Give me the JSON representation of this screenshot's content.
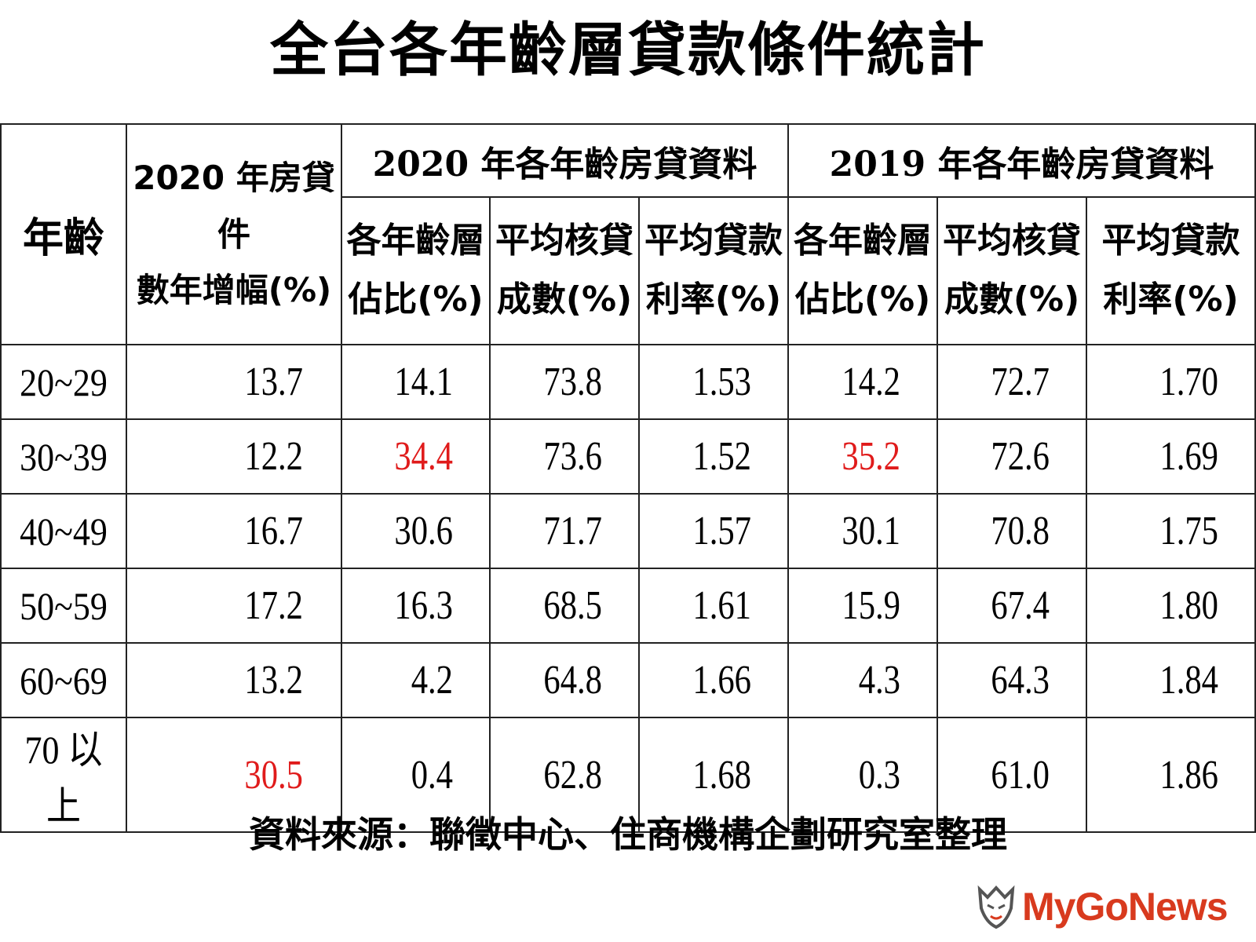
{
  "title": "全台各年齡層貸款條件統計",
  "source": "資料來源：聯徵中心、住商機構企劃研究室整理",
  "logo": {
    "text": "MyGoNews",
    "color": "#d83a1e"
  },
  "highlight_color": "#e01b1b",
  "chart_data": {
    "type": "table",
    "title": "全台各年齡層貸款條件統計",
    "header": {
      "age": "年齡",
      "increase": {
        "line1": "2020 年房貸件",
        "line2": "數年增幅(%)"
      },
      "group_2020": {
        "year": "2020",
        "label": "年各年齡房貸資料"
      },
      "group_2019": {
        "year": "2019",
        "label": "年各年齡房貸資料"
      },
      "sub_columns": [
        {
          "line1": "各年齡層",
          "line2": "佔比(%)"
        },
        {
          "line1": "平均核貸",
          "line2": "成數(%)"
        },
        {
          "line1": "平均貸款",
          "line2": "利率(%)"
        }
      ]
    },
    "columns": [
      "年齡",
      "2020 年房貸件數年增幅(%)",
      "2020 各年齡層佔比(%)",
      "2020 平均核貸成數(%)",
      "2020 平均貸款利率(%)",
      "2019 各年齡層佔比(%)",
      "2019 平均核貸成數(%)",
      "2019 平均貸款利率(%)"
    ],
    "rows": [
      {
        "age": "20~29",
        "values": [
          "13.7",
          "14.1",
          "73.8",
          "1.53",
          "14.2",
          "72.7",
          "1.70"
        ]
      },
      {
        "age": "30~39",
        "values": [
          "12.2",
          "34.4",
          "73.6",
          "1.52",
          "35.2",
          "72.6",
          "1.69"
        ]
      },
      {
        "age": "40~49",
        "values": [
          "16.7",
          "30.6",
          "71.7",
          "1.57",
          "30.1",
          "70.8",
          "1.75"
        ]
      },
      {
        "age": "50~59",
        "values": [
          "17.2",
          "16.3",
          "68.5",
          "1.61",
          "15.9",
          "67.4",
          "1.80"
        ]
      },
      {
        "age": "60~69",
        "values": [
          "13.2",
          "4.2",
          "64.8",
          "1.66",
          "4.3",
          "64.3",
          "1.84"
        ]
      },
      {
        "age": "70 以上",
        "values": [
          "30.5",
          "0.4",
          "62.8",
          "1.68",
          "0.3",
          "61.0",
          "1.86"
        ]
      }
    ],
    "highlighted": [
      {
        "row": 1,
        "col": 1
      },
      {
        "row": 1,
        "col": 4
      },
      {
        "row": 5,
        "col": 0
      }
    ]
  }
}
